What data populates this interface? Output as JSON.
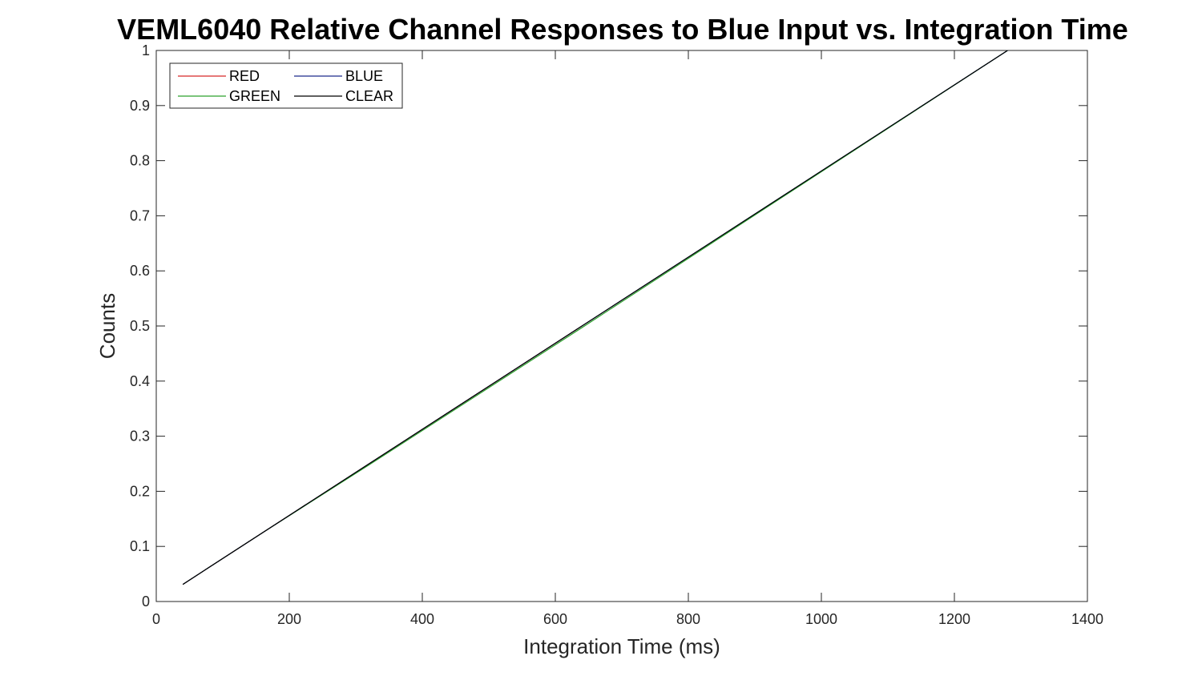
{
  "chart_data": {
    "type": "line",
    "title": "VEML6040 Relative Channel Responses to Blue Input vs. Integration Time",
    "xlabel": "Integration Time (ms)",
    "ylabel": "Counts",
    "xlim": [
      0,
      1400
    ],
    "ylim": [
      0,
      1
    ],
    "xticks": [
      0,
      200,
      400,
      600,
      800,
      1000,
      1200,
      1400
    ],
    "xtick_labels": [
      "0",
      "200",
      "400",
      "600",
      "800",
      "1000",
      "1200",
      "1400"
    ],
    "yticks": [
      0,
      0.1,
      0.2,
      0.3,
      0.4,
      0.5,
      0.6,
      0.7,
      0.8,
      0.9,
      1
    ],
    "ytick_labels": [
      "0",
      "0.1",
      "0.2",
      "0.3",
      "0.4",
      "0.5",
      "0.6",
      "0.7",
      "0.8",
      "0.9",
      "1"
    ],
    "grid": false,
    "legend_position": "top-left",
    "legend_columns": 2,
    "series": [
      {
        "name": "RED",
        "color": "#d62728",
        "x": [
          40,
          80,
          160,
          320,
          640
        ],
        "y": [
          0.031,
          0.0625,
          0.125,
          0.25,
          0.5
        ]
      },
      {
        "name": "GREEN",
        "color": "#2ca02c",
        "x": [
          40,
          80,
          160,
          320,
          640,
          1280
        ],
        "y": [
          0.031,
          0.0625,
          0.125,
          0.248,
          0.497,
          1.0
        ]
      },
      {
        "name": "BLUE",
        "color": "#1f2a8c",
        "x": [
          40,
          80,
          160,
          320,
          640,
          1280
        ],
        "y": [
          0.031,
          0.0625,
          0.125,
          0.25,
          0.5,
          1.0
        ]
      },
      {
        "name": "CLEAR",
        "color": "#000000",
        "x": [
          40,
          80,
          160,
          320,
          640,
          1280
        ],
        "y": [
          0.031,
          0.0625,
          0.125,
          0.25,
          0.5,
          1.0
        ]
      }
    ]
  }
}
